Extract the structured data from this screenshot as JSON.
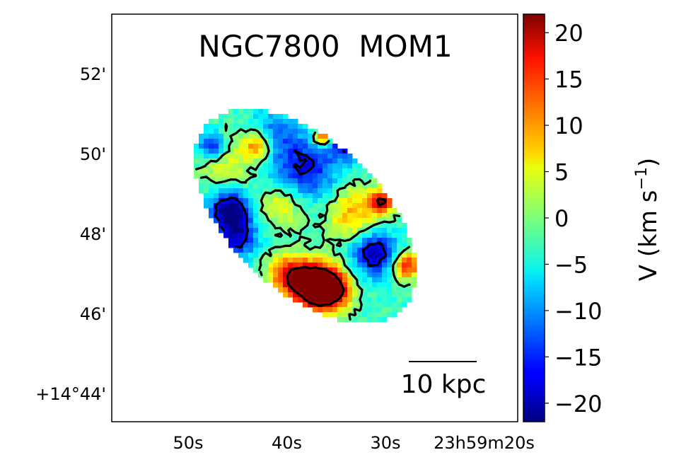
{
  "chart_data": {
    "type": "heatmap",
    "title": "NGC7800  MOM1",
    "xlabel": "",
    "ylabel": "",
    "x_units": "RA seconds past 23h59m",
    "y_units": "Dec arcmin past +14°",
    "x_ticks": [
      {
        "value": 50,
        "label": "50s"
      },
      {
        "value": 40,
        "label": "40s"
      },
      {
        "value": 30,
        "label": "30s"
      },
      {
        "value": 20,
        "label": "23h59m20s"
      }
    ],
    "y_ticks": [
      {
        "value": 52,
        "label": "52'"
      },
      {
        "value": 50,
        "label": "50'"
      },
      {
        "value": 48,
        "label": "48'"
      },
      {
        "value": 46,
        "label": "46'"
      },
      {
        "value": 44,
        "label": "+14°44'"
      }
    ],
    "colormap": "jet",
    "vmin": -22,
    "vmax": 22,
    "colorbar": {
      "label": "V (km s",
      "label_sup": "−1",
      "label_end": ")",
      "ticks": [
        {
          "value": 20,
          "label": "20"
        },
        {
          "value": 15,
          "label": "15"
        },
        {
          "value": 10,
          "label": "10"
        },
        {
          "value": 5,
          "label": "5"
        },
        {
          "value": 0,
          "label": "0"
        },
        {
          "value": -5,
          "label": "−5"
        },
        {
          "value": -10,
          "label": "−10"
        },
        {
          "value": -15,
          "label": "−15"
        },
        {
          "value": -20,
          "label": "−20"
        }
      ]
    },
    "contour_levels": [
      -16,
      -1,
      20
    ],
    "baseline_velocity": -3,
    "velocity_features": [
      {
        "ra_s": 37.5,
        "dec_m": 46.7,
        "amp": 30,
        "sigma_arcmin": 0.4
      },
      {
        "ra_s": 35.5,
        "dec_m": 46.6,
        "amp": 28,
        "sigma_arcmin": 0.35
      },
      {
        "ra_s": 40.0,
        "dec_m": 47.0,
        "amp": 16,
        "sigma_arcmin": 0.35
      },
      {
        "ra_s": 38.2,
        "dec_m": 49.6,
        "amp": -14,
        "sigma_arcmin": 0.6
      },
      {
        "ra_s": 45.8,
        "dec_m": 48.6,
        "amp": -20,
        "sigma_arcmin": 0.35
      },
      {
        "ra_s": 45.0,
        "dec_m": 47.9,
        "amp": -15,
        "sigma_arcmin": 0.35
      },
      {
        "ra_s": 31.1,
        "dec_m": 47.5,
        "amp": -18,
        "sigma_arcmin": 0.4
      },
      {
        "ra_s": 33.2,
        "dec_m": 48.5,
        "amp": 12,
        "sigma_arcmin": 0.5
      },
      {
        "ra_s": 46.1,
        "dec_m": 49.8,
        "amp": 8,
        "sigma_arcmin": 0.5
      },
      {
        "ra_s": 42.9,
        "dec_m": 50.2,
        "amp": 16,
        "sigma_arcmin": 0.25
      },
      {
        "ra_s": 27.9,
        "dec_m": 47.2,
        "amp": 20,
        "sigma_arcmin": 0.25
      },
      {
        "ra_s": 30.4,
        "dec_m": 48.8,
        "amp": 22,
        "sigma_arcmin": 0.2
      },
      {
        "ra_s": 40.4,
        "dec_m": 48.7,
        "amp": 10,
        "sigma_arcmin": 0.4
      },
      {
        "ra_s": 47.6,
        "dec_m": 50.2,
        "amp": -16,
        "sigma_arcmin": 0.25
      },
      {
        "ra_s": 36.4,
        "dec_m": 50.4,
        "amp": 22,
        "sigma_arcmin": 0.15
      },
      {
        "ra_s": 33.9,
        "dec_m": 50.3,
        "amp": -16,
        "sigma_arcmin": 0.3
      },
      {
        "ra_s": 41.5,
        "dec_m": 50.5,
        "amp": -8,
        "sigma_arcmin": 0.4
      }
    ],
    "scale_bar": {
      "label": "10 kpc"
    }
  }
}
